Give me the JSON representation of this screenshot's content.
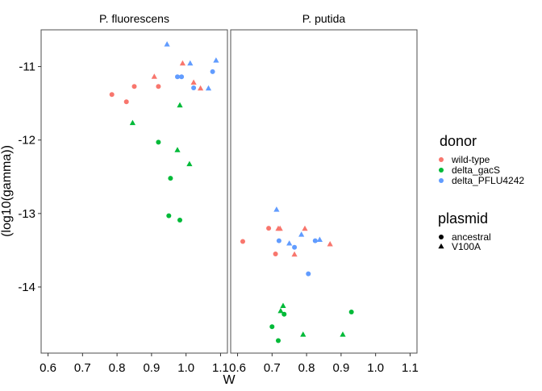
{
  "chart_data": {
    "type": "scatter",
    "xlabel": "W",
    "ylabel": "(log10(gamma))",
    "xlim": [
      0.58,
      1.12
    ],
    "ylim": [
      -14.9,
      -10.5
    ],
    "x_ticks": [
      0.6,
      0.7,
      0.8,
      0.9,
      1.0,
      1.1
    ],
    "x_tick_labels": [
      "0.6",
      "0.7",
      "0.8",
      "0.9",
      "1.0",
      "1.1"
    ],
    "y_ticks": [
      -11,
      -12,
      -13,
      -14
    ],
    "y_tick_labels": [
      "-11",
      "-12",
      "-13",
      "-14"
    ],
    "grid": false,
    "facets": [
      "P. fluorescens",
      "P. putida"
    ],
    "legend": {
      "placement": "right",
      "color_title": "donor",
      "color_entries": [
        {
          "label": "wild-type",
          "color": "#F8766D"
        },
        {
          "label": "delta_gacS",
          "color": "#00BA38"
        },
        {
          "label": "delta_PFLU4242",
          "color": "#619CFF"
        }
      ],
      "shape_title": "plasmid",
      "shape_entries": [
        {
          "label": "ancestral",
          "shape": "circle"
        },
        {
          "label": "V100A",
          "shape": "triangle"
        }
      ]
    },
    "points": [
      {
        "facet": 0,
        "donor": 0,
        "shape": "circle",
        "x": 0.785,
        "y": -11.38
      },
      {
        "facet": 0,
        "donor": 0,
        "shape": "circle",
        "x": 0.827,
        "y": -11.48
      },
      {
        "facet": 0,
        "donor": 0,
        "shape": "circle",
        "x": 0.85,
        "y": -11.27
      },
      {
        "facet": 0,
        "donor": 0,
        "shape": "circle",
        "x": 0.92,
        "y": -11.27
      },
      {
        "facet": 0,
        "donor": 0,
        "shape": "triangle",
        "x": 0.908,
        "y": -11.14
      },
      {
        "facet": 0,
        "donor": 0,
        "shape": "triangle",
        "x": 0.99,
        "y": -10.96
      },
      {
        "facet": 0,
        "donor": 0,
        "shape": "triangle",
        "x": 1.022,
        "y": -11.22
      },
      {
        "facet": 0,
        "donor": 0,
        "shape": "triangle",
        "x": 1.042,
        "y": -11.3
      },
      {
        "facet": 0,
        "donor": 1,
        "shape": "triangle",
        "x": 0.845,
        "y": -11.77
      },
      {
        "facet": 0,
        "donor": 1,
        "shape": "triangle",
        "x": 0.982,
        "y": -11.53
      },
      {
        "facet": 0,
        "donor": 1,
        "shape": "triangle",
        "x": 0.975,
        "y": -12.14
      },
      {
        "facet": 0,
        "donor": 1,
        "shape": "triangle",
        "x": 1.01,
        "y": -12.33
      },
      {
        "facet": 0,
        "donor": 1,
        "shape": "circle",
        "x": 0.92,
        "y": -12.03
      },
      {
        "facet": 0,
        "donor": 1,
        "shape": "circle",
        "x": 0.955,
        "y": -12.52
      },
      {
        "facet": 0,
        "donor": 1,
        "shape": "circle",
        "x": 0.95,
        "y": -13.03
      },
      {
        "facet": 0,
        "donor": 1,
        "shape": "circle",
        "x": 0.982,
        "y": -13.09
      },
      {
        "facet": 0,
        "donor": 2,
        "shape": "triangle",
        "x": 0.945,
        "y": -10.7
      },
      {
        "facet": 0,
        "donor": 2,
        "shape": "triangle",
        "x": 1.012,
        "y": -10.96
      },
      {
        "facet": 0,
        "donor": 2,
        "shape": "triangle",
        "x": 1.087,
        "y": -10.92
      },
      {
        "facet": 0,
        "donor": 2,
        "shape": "triangle",
        "x": 1.065,
        "y": -11.3
      },
      {
        "facet": 0,
        "donor": 2,
        "shape": "circle",
        "x": 0.975,
        "y": -11.14
      },
      {
        "facet": 0,
        "donor": 2,
        "shape": "circle",
        "x": 0.987,
        "y": -11.14
      },
      {
        "facet": 0,
        "donor": 2,
        "shape": "circle",
        "x": 1.022,
        "y": -11.29
      },
      {
        "facet": 0,
        "donor": 2,
        "shape": "circle",
        "x": 1.077,
        "y": -11.07
      },
      {
        "facet": 1,
        "donor": 0,
        "shape": "circle",
        "x": 0.615,
        "y": -13.38
      },
      {
        "facet": 1,
        "donor": 0,
        "shape": "circle",
        "x": 0.69,
        "y": -13.2
      },
      {
        "facet": 1,
        "donor": 0,
        "shape": "circle",
        "x": 0.71,
        "y": -13.55
      },
      {
        "facet": 1,
        "donor": 0,
        "shape": "triangle",
        "x": 0.718,
        "y": -13.21
      },
      {
        "facet": 1,
        "donor": 0,
        "shape": "triangle",
        "x": 0.723,
        "y": -13.21
      },
      {
        "facet": 1,
        "donor": 0,
        "shape": "triangle",
        "x": 0.765,
        "y": -13.56
      },
      {
        "facet": 1,
        "donor": 0,
        "shape": "triangle",
        "x": 0.795,
        "y": -13.21
      },
      {
        "facet": 1,
        "donor": 0,
        "shape": "triangle",
        "x": 0.868,
        "y": -13.42
      },
      {
        "facet": 1,
        "donor": 1,
        "shape": "circle",
        "x": 0.7,
        "y": -14.54
      },
      {
        "facet": 1,
        "donor": 1,
        "shape": "circle",
        "x": 0.718,
        "y": -14.73
      },
      {
        "facet": 1,
        "donor": 1,
        "shape": "circle",
        "x": 0.735,
        "y": -14.37
      },
      {
        "facet": 1,
        "donor": 1,
        "shape": "circle",
        "x": 0.93,
        "y": -14.34
      },
      {
        "facet": 1,
        "donor": 1,
        "shape": "triangle",
        "x": 0.725,
        "y": -14.33
      },
      {
        "facet": 1,
        "donor": 1,
        "shape": "triangle",
        "x": 0.732,
        "y": -14.26
      },
      {
        "facet": 1,
        "donor": 1,
        "shape": "triangle",
        "x": 0.79,
        "y": -14.65
      },
      {
        "facet": 1,
        "donor": 1,
        "shape": "triangle",
        "x": 0.905,
        "y": -14.65
      },
      {
        "facet": 1,
        "donor": 2,
        "shape": "triangle",
        "x": 0.713,
        "y": -12.95
      },
      {
        "facet": 1,
        "donor": 2,
        "shape": "triangle",
        "x": 0.75,
        "y": -13.41
      },
      {
        "facet": 1,
        "donor": 2,
        "shape": "triangle",
        "x": 0.785,
        "y": -13.29
      },
      {
        "facet": 1,
        "donor": 2,
        "shape": "triangle",
        "x": 0.838,
        "y": -13.36
      },
      {
        "facet": 1,
        "donor": 2,
        "shape": "circle",
        "x": 0.72,
        "y": -13.37
      },
      {
        "facet": 1,
        "donor": 2,
        "shape": "circle",
        "x": 0.765,
        "y": -13.46
      },
      {
        "facet": 1,
        "donor": 2,
        "shape": "circle",
        "x": 0.805,
        "y": -13.82
      },
      {
        "facet": 1,
        "donor": 2,
        "shape": "circle",
        "x": 0.825,
        "y": -13.37
      }
    ]
  }
}
